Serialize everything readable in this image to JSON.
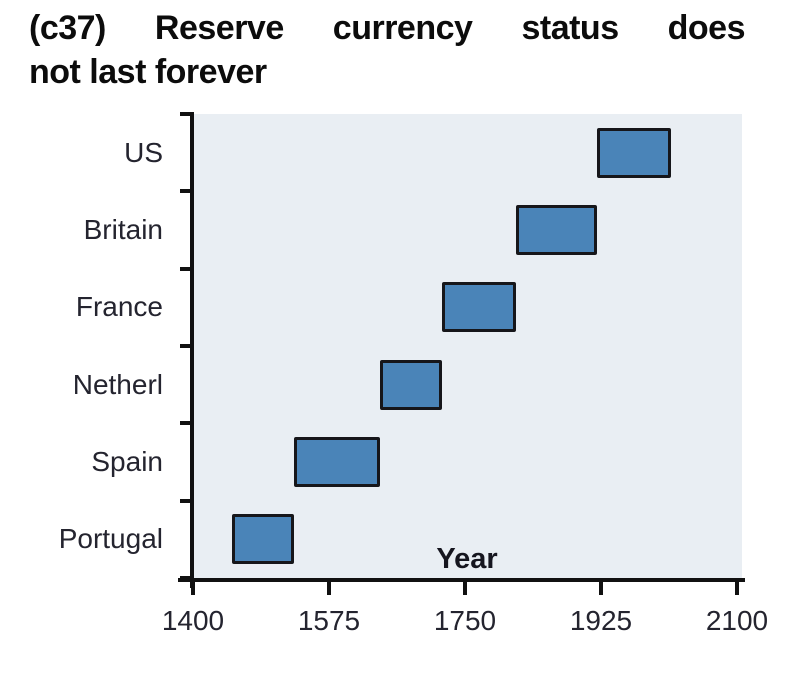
{
  "title": {
    "line1": "(c37) Reserve currency status does",
    "line2": "not last forever",
    "full": "(c37) Reserve currency status does not last forever"
  },
  "chart_data": {
    "type": "bar",
    "subtype": "horizontal-timeline-gantt",
    "title": "(c37) Reserve currency status does not last forever",
    "xlabel": "Year",
    "ylabel": "",
    "xlim": [
      1400,
      2100
    ],
    "xticks": [
      1400,
      1575,
      1750,
      1925,
      2100
    ],
    "categories": [
      "US",
      "Britain",
      "France",
      "Netherl",
      "Spain",
      "Portugal"
    ],
    "series": [
      {
        "name": "US",
        "start": 1920,
        "end": 2015
      },
      {
        "name": "Britain",
        "start": 1815,
        "end": 1920
      },
      {
        "name": "France",
        "start": 1720,
        "end": 1815
      },
      {
        "name": "Netherl",
        "start": 1640,
        "end": 1720
      },
      {
        "name": "Spain",
        "start": 1530,
        "end": 1640
      },
      {
        "name": "Portugal",
        "start": 1450,
        "end": 1530
      }
    ],
    "grid": false,
    "legend": false,
    "colors": {
      "bar_fill": "#4a84b8",
      "bar_border": "#16161a",
      "plot_background": "#e9eef3",
      "axis": "#111111",
      "label_text": "#24242f",
      "title_text": "#0c0c0c"
    }
  }
}
